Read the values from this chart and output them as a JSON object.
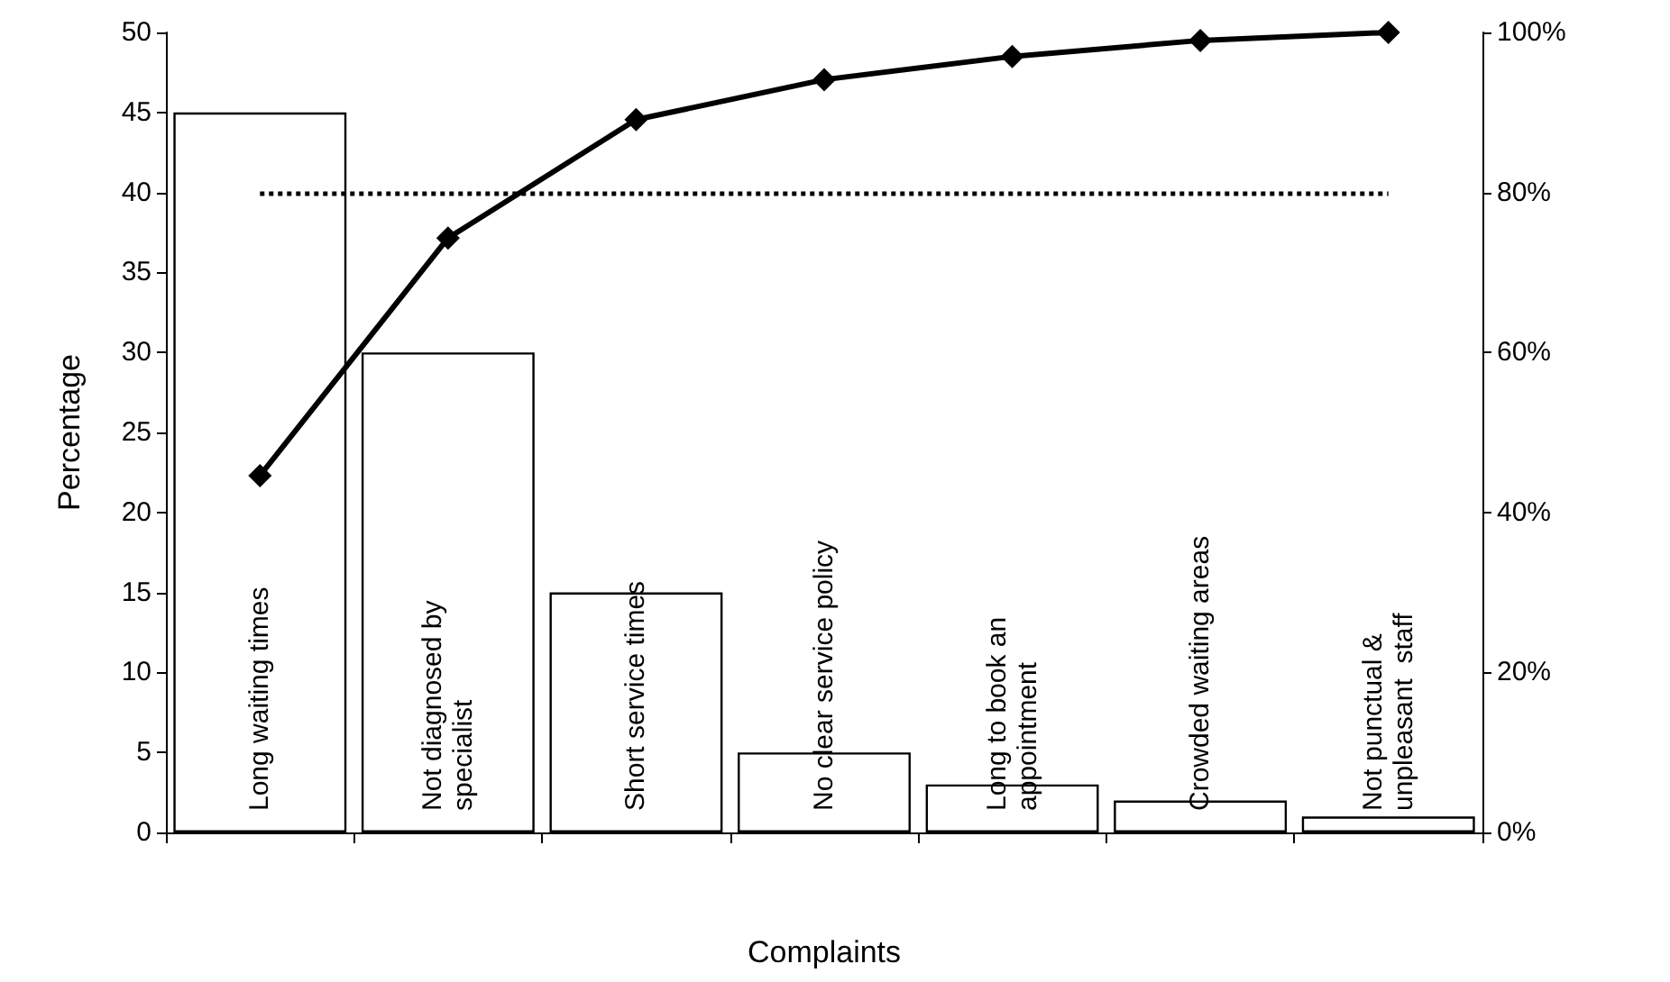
{
  "chart_data": {
    "type": "bar",
    "xlabel": "Complaints",
    "ylabel": "Percentage",
    "categories": [
      "Long waiting times",
      "Not diagnosed by specialist",
      "Short service times",
      "No clear service policy",
      "Long to book an appointment",
      "Crowded waiting areas",
      "Not punctual & unpleasant  staff"
    ],
    "series": [
      {
        "color": "#ffffff",
        "values": [
          45,
          30,
          15,
          5,
          3,
          2,
          1
        ]
      },
      {
        "type": "line",
        "axis": "y2",
        "color": "#000000",
        "marker": "diamond",
        "values": [
          44.6,
          74.3,
          89.1,
          94.1,
          97.0,
          99.0,
          100
        ]
      }
    ],
    "ylim": [
      0,
      50
    ],
    "yticks": [
      0,
      5,
      10,
      15,
      20,
      25,
      30,
      35,
      40,
      45,
      50
    ],
    "y2lim": [
      0,
      100
    ],
    "y2ticks": [
      {
        "value": 0,
        "label": "0%"
      },
      {
        "value": 20,
        "label": "20%"
      },
      {
        "value": 40,
        "label": "40%"
      },
      {
        "value": 60,
        "label": "60%"
      },
      {
        "value": 80,
        "label": "80%"
      },
      {
        "value": 100,
        "label": "100%"
      }
    ],
    "ref_lines": [
      {
        "axis": "y2",
        "value": 80,
        "line_style": "dotted",
        "color": "#000000"
      }
    ],
    "grid": false
  }
}
